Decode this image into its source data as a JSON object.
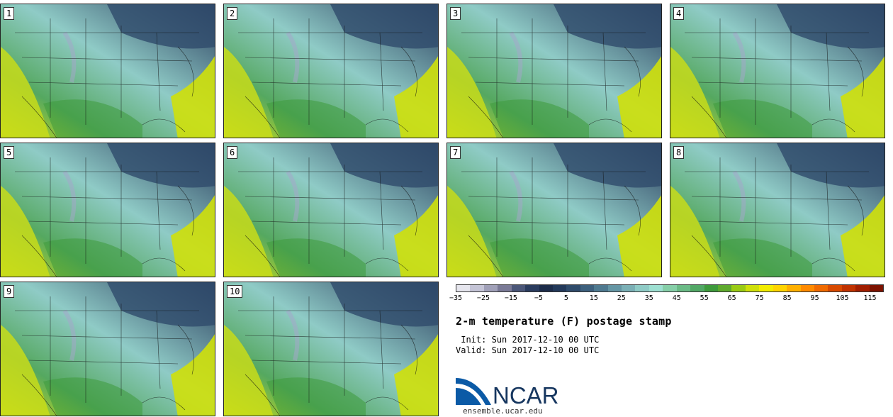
{
  "chart_data": {
    "type": "heatmap",
    "title": "2-m temperature (F) postage stamp",
    "init": " Init: Sun 2017-12-10 00 UTC",
    "valid": "Valid: Sun 2017-12-10 00 UTC",
    "panels": [
      "1",
      "2",
      "3",
      "4",
      "5",
      "6",
      "7",
      "8",
      "9",
      "10"
    ],
    "colorbar": {
      "levels": [
        -35,
        -30,
        -25,
        -20,
        -15,
        -10,
        -5,
        0,
        5,
        10,
        15,
        20,
        25,
        30,
        35,
        40,
        45,
        50,
        55,
        60,
        65,
        70,
        75,
        80,
        85,
        90,
        95,
        100,
        105,
        110,
        115,
        120
      ],
      "tick_labels": [
        "-35",
        "-25",
        "-15",
        "-5",
        "5",
        "15",
        "25",
        "35",
        "45",
        "55",
        "65",
        "75",
        "85",
        "95",
        "105",
        "115"
      ],
      "colors": [
        "#e6e6ee",
        "#c4c4d6",
        "#a0a0b8",
        "#7a7a96",
        "#4a5678",
        "#2a3c5e",
        "#1c2c4a",
        "#23395a",
        "#2f4b6b",
        "#3d607d",
        "#4f7a90",
        "#6596a4",
        "#7bb0b6",
        "#8fcbc6",
        "#9ee0d2",
        "#86cfa8",
        "#6bbb86",
        "#52a866",
        "#3e9a3c",
        "#5faa2e",
        "#9acb14",
        "#cfe00a",
        "#f2ec00",
        "#ffd400",
        "#ffb000",
        "#ff8a00",
        "#f06a00",
        "#d84a00",
        "#c03200",
        "#a11e00",
        "#7c1200"
      ]
    },
    "logo_text": "NCAR",
    "site": "ensemble.ucar.edu"
  }
}
